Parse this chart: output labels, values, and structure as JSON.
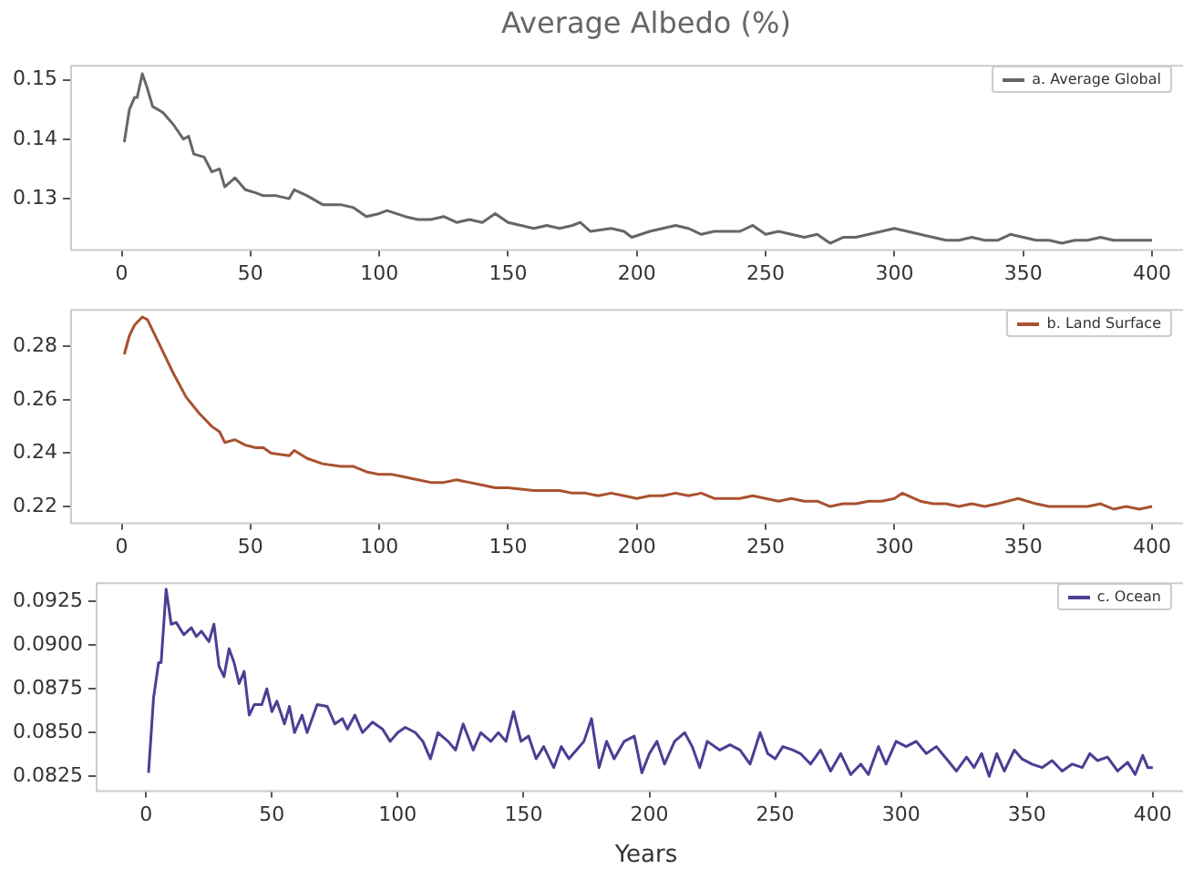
{
  "chart_data": [
    {
      "type": "line",
      "title": "Average Albedo (%)",
      "xlim": [
        -20,
        412
      ],
      "xticks": [
        0,
        50,
        100,
        150,
        200,
        250,
        300,
        350,
        400
      ],
      "ylim": [
        0.1215,
        0.1525
      ],
      "yticks": [
        0.13,
        0.14,
        0.15
      ],
      "legend": "top right",
      "marker": "none",
      "line_style": "solid",
      "series": [
        {
          "name": "a. Average Global",
          "color": "#666666",
          "x": [
            1,
            3,
            5,
            6,
            8,
            10,
            12,
            16,
            20,
            24,
            26,
            28,
            32,
            35,
            38,
            40,
            44,
            48,
            52,
            55,
            60,
            65,
            67,
            72,
            78,
            85,
            90,
            95,
            100,
            103,
            110,
            115,
            120,
            125,
            130,
            135,
            140,
            145,
            150,
            155,
            160,
            165,
            170,
            175,
            178,
            182,
            190,
            195,
            198,
            205,
            210,
            215,
            220,
            225,
            230,
            240,
            245,
            250,
            255,
            260,
            265,
            270,
            275,
            280,
            285,
            290,
            295,
            300,
            305,
            310,
            315,
            320,
            325,
            330,
            335,
            340,
            345,
            350,
            355,
            360,
            365,
            370,
            375,
            380,
            385,
            390,
            395,
            400
          ],
          "values": [
            0.1395,
            0.145,
            0.147,
            0.147,
            0.151,
            0.1485,
            0.1455,
            0.1445,
            0.1425,
            0.14,
            0.1405,
            0.1375,
            0.137,
            0.1345,
            0.135,
            0.132,
            0.1335,
            0.1315,
            0.131,
            0.1305,
            0.1305,
            0.13,
            0.1315,
            0.1305,
            0.129,
            0.129,
            0.1285,
            0.127,
            0.1275,
            0.128,
            0.127,
            0.1265,
            0.1265,
            0.127,
            0.126,
            0.1265,
            0.126,
            0.1275,
            0.126,
            0.1255,
            0.125,
            0.1255,
            0.125,
            0.1255,
            0.126,
            0.1245,
            0.125,
            0.1245,
            0.1235,
            0.1245,
            0.125,
            0.1255,
            0.125,
            0.124,
            0.1245,
            0.1245,
            0.1255,
            0.124,
            0.1245,
            0.124,
            0.1235,
            0.124,
            0.1225,
            0.1235,
            0.1235,
            0.124,
            0.1245,
            0.125,
            0.1245,
            0.124,
            0.1235,
            0.123,
            0.123,
            0.1235,
            0.123,
            0.123,
            0.124,
            0.1235,
            0.123,
            0.123,
            0.1225,
            0.123,
            0.123,
            0.1235,
            0.123,
            0.123,
            0.123,
            0.123
          ]
        }
      ]
    },
    {
      "type": "line",
      "xlim": [
        -20,
        412
      ],
      "xticks": [
        0,
        50,
        100,
        150,
        200,
        250,
        300,
        350,
        400
      ],
      "ylim": [
        0.214,
        0.294
      ],
      "yticks": [
        0.22,
        0.24,
        0.26,
        0.28
      ],
      "legend": "top right",
      "marker": "none",
      "line_style": "solid",
      "series": [
        {
          "name": "b. Land Surface",
          "color": "#a9522f",
          "x": [
            1,
            3,
            5,
            8,
            10,
            12,
            15,
            20,
            25,
            30,
            35,
            38,
            40,
            44,
            48,
            52,
            55,
            58,
            65,
            67,
            72,
            78,
            85,
            90,
            95,
            100,
            105,
            110,
            115,
            120,
            125,
            130,
            135,
            140,
            145,
            150,
            160,
            170,
            175,
            180,
            185,
            190,
            195,
            200,
            205,
            210,
            215,
            220,
            225,
            230,
            240,
            245,
            250,
            255,
            260,
            265,
            270,
            275,
            280,
            285,
            290,
            295,
            300,
            303,
            310,
            315,
            320,
            325,
            330,
            335,
            340,
            348,
            355,
            360,
            365,
            370,
            375,
            380,
            385,
            390,
            395,
            400
          ],
          "values": [
            0.277,
            0.284,
            0.288,
            0.291,
            0.29,
            0.286,
            0.28,
            0.27,
            0.261,
            0.255,
            0.25,
            0.248,
            0.244,
            0.245,
            0.243,
            0.242,
            0.242,
            0.24,
            0.239,
            0.241,
            0.238,
            0.236,
            0.235,
            0.235,
            0.233,
            0.232,
            0.232,
            0.231,
            0.23,
            0.229,
            0.229,
            0.23,
            0.229,
            0.228,
            0.227,
            0.227,
            0.226,
            0.226,
            0.225,
            0.225,
            0.224,
            0.225,
            0.224,
            0.223,
            0.224,
            0.224,
            0.225,
            0.224,
            0.225,
            0.223,
            0.223,
            0.224,
            0.223,
            0.222,
            0.223,
            0.222,
            0.222,
            0.22,
            0.221,
            0.221,
            0.222,
            0.222,
            0.223,
            0.225,
            0.222,
            0.221,
            0.221,
            0.22,
            0.221,
            0.22,
            0.221,
            0.223,
            0.221,
            0.22,
            0.22,
            0.22,
            0.22,
            0.221,
            0.219,
            0.22,
            0.219,
            0.22
          ]
        }
      ]
    },
    {
      "type": "line",
      "xlabel": "Years",
      "xlim": [
        -20,
        412
      ],
      "xticks": [
        0,
        50,
        100,
        150,
        200,
        250,
        300,
        350,
        400
      ],
      "ylim": [
        0.0817,
        0.0936
      ],
      "yticks": [
        0.0825,
        {
          "value": 0.085,
          "label": "0.0850"
        },
        0.0875,
        {
          "value": 0.09,
          "label": "0.0900"
        },
        0.0925
      ],
      "legend": "top right",
      "marker": "none",
      "line_style": "solid",
      "series": [
        {
          "name": "c. Ocean",
          "color": "#4a3f94",
          "x": [
            1,
            3,
            5,
            6,
            8,
            10,
            12,
            15,
            18,
            20,
            22,
            25,
            27,
            29,
            31,
            33,
            35,
            37,
            39,
            41,
            43,
            46,
            48,
            50,
            52,
            55,
            57,
            59,
            62,
            64,
            66,
            68,
            72,
            75,
            78,
            80,
            83,
            86,
            90,
            94,
            97,
            100,
            103,
            107,
            110,
            113,
            116,
            120,
            123,
            126,
            130,
            133,
            137,
            140,
            143,
            146,
            149,
            152,
            155,
            158,
            162,
            165,
            168,
            171,
            174,
            177,
            180,
            183,
            186,
            190,
            194,
            197,
            200,
            203,
            206,
            210,
            214,
            217,
            220,
            223,
            228,
            232,
            236,
            240,
            244,
            247,
            250,
            253,
            257,
            260,
            264,
            268,
            272,
            276,
            280,
            284,
            287,
            291,
            294,
            298,
            302,
            306,
            310,
            314,
            318,
            322,
            326,
            329,
            332,
            335,
            338,
            341,
            345,
            348,
            352,
            356,
            360,
            364,
            368,
            372,
            375,
            378,
            382,
            386,
            390,
            393,
            396,
            398,
            400
          ],
          "values": [
            0.0827,
            0.087,
            0.089,
            0.089,
            0.0932,
            0.0912,
            0.0913,
            0.0906,
            0.091,
            0.0905,
            0.0908,
            0.0902,
            0.0912,
            0.0888,
            0.0882,
            0.0898,
            0.089,
            0.0878,
            0.0885,
            0.086,
            0.0866,
            0.0866,
            0.0875,
            0.0862,
            0.0868,
            0.0855,
            0.0865,
            0.085,
            0.086,
            0.085,
            0.0858,
            0.0866,
            0.0865,
            0.0855,
            0.0858,
            0.0852,
            0.086,
            0.085,
            0.0856,
            0.0852,
            0.0845,
            0.085,
            0.0853,
            0.085,
            0.0845,
            0.0835,
            0.085,
            0.0845,
            0.084,
            0.0855,
            0.084,
            0.085,
            0.0845,
            0.085,
            0.0845,
            0.0862,
            0.0845,
            0.0848,
            0.0835,
            0.0842,
            0.083,
            0.0842,
            0.0835,
            0.084,
            0.0845,
            0.0858,
            0.083,
            0.0845,
            0.0835,
            0.0845,
            0.0848,
            0.0827,
            0.0838,
            0.0845,
            0.0832,
            0.0845,
            0.085,
            0.0842,
            0.083,
            0.0845,
            0.084,
            0.0843,
            0.084,
            0.0832,
            0.085,
            0.0838,
            0.0835,
            0.0842,
            0.084,
            0.0838,
            0.0832,
            0.084,
            0.0828,
            0.0838,
            0.0826,
            0.0832,
            0.0826,
            0.0842,
            0.0832,
            0.0845,
            0.0842,
            0.0845,
            0.0838,
            0.0842,
            0.0835,
            0.0828,
            0.0836,
            0.083,
            0.0838,
            0.0825,
            0.0838,
            0.0828,
            0.084,
            0.0835,
            0.0832,
            0.083,
            0.0834,
            0.0828,
            0.0832,
            0.083,
            0.0838,
            0.0834,
            0.0836,
            0.0828,
            0.0833,
            0.0826,
            0.0837,
            0.083,
            0.083
          ]
        }
      ]
    }
  ]
}
